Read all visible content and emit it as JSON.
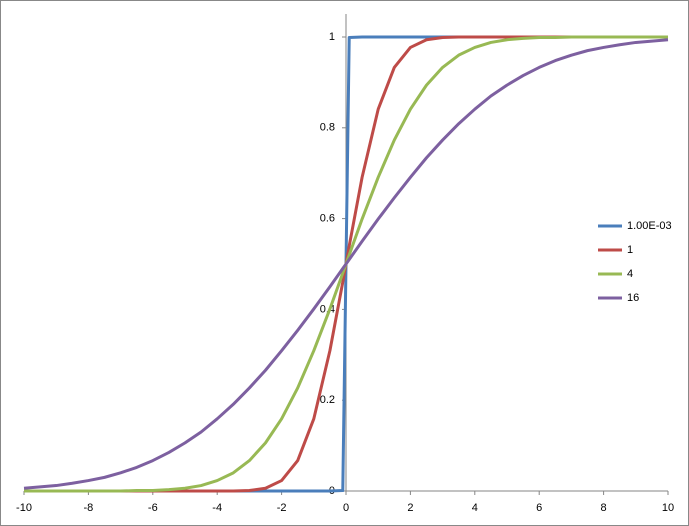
{
  "chart_data": {
    "type": "line",
    "x": [
      -10,
      -9.5,
      -9,
      -8.5,
      -8,
      -7.5,
      -7,
      -6.5,
      -6,
      -5.5,
      -5,
      -4.5,
      -4,
      -3.5,
      -3,
      -2.5,
      -2,
      -1.5,
      -1,
      -0.5,
      -0.1,
      0,
      0.1,
      0.5,
      1,
      1.5,
      2,
      2.5,
      3,
      3.5,
      4,
      4.5,
      5,
      5.5,
      6,
      6.5,
      7,
      7.5,
      8,
      8.5,
      9,
      9.5,
      10
    ],
    "series": [
      {
        "name": "1.00E-03",
        "color": "#4a7ebb",
        "values": [
          0,
          0,
          0,
          0,
          0,
          0,
          0,
          0,
          0,
          0,
          0,
          0,
          0,
          0,
          0,
          0,
          0,
          0,
          0,
          0,
          0.001,
          0.5,
          0.999,
          1,
          1,
          1,
          1,
          1,
          1,
          1,
          1,
          1,
          1,
          1,
          1,
          1,
          1,
          1,
          1,
          1,
          1,
          1,
          1
        ]
      },
      {
        "name": "1",
        "color": "#be4b48",
        "values": [
          0,
          0,
          0,
          0,
          0,
          0,
          0,
          0,
          0,
          0,
          0,
          0,
          0,
          0,
          0.001,
          0.006,
          0.023,
          0.067,
          0.159,
          0.309,
          0.46,
          0.5,
          0.54,
          0.691,
          0.841,
          0.933,
          0.977,
          0.994,
          0.999,
          1,
          1,
          1,
          1,
          1,
          1,
          1,
          1,
          1,
          1,
          1,
          1,
          1,
          1
        ]
      },
      {
        "name": "4",
        "color": "#98b954",
        "values": [
          0,
          0,
          0,
          0,
          0,
          0,
          0,
          0.001,
          0.001,
          0.003,
          0.006,
          0.012,
          0.023,
          0.04,
          0.067,
          0.106,
          0.159,
          0.227,
          0.309,
          0.401,
          0.48,
          0.5,
          0.52,
          0.599,
          0.691,
          0.773,
          0.841,
          0.894,
          0.933,
          0.96,
          0.977,
          0.988,
          0.994,
          0.997,
          0.999,
          0.999,
          1,
          1,
          1,
          1,
          1,
          1,
          1
        ]
      },
      {
        "name": "16",
        "color": "#7d60a0",
        "values": [
          0.006,
          0.009,
          0.012,
          0.017,
          0.023,
          0.03,
          0.04,
          0.052,
          0.067,
          0.085,
          0.106,
          0.13,
          0.159,
          0.191,
          0.227,
          0.266,
          0.309,
          0.354,
          0.401,
          0.45,
          0.49,
          0.5,
          0.51,
          0.55,
          0.599,
          0.646,
          0.691,
          0.734,
          0.773,
          0.809,
          0.841,
          0.87,
          0.894,
          0.915,
          0.933,
          0.948,
          0.96,
          0.97,
          0.977,
          0.983,
          0.988,
          0.991,
          0.994
        ]
      }
    ],
    "xlim": [
      -10,
      10
    ],
    "xticks": [
      -10,
      -8,
      -6,
      -4,
      -2,
      0,
      2,
      4,
      6,
      8,
      10
    ],
    "ylim": [
      0,
      1
    ],
    "yticks": [
      0,
      0.2,
      0.4,
      0.6,
      0.8,
      1
    ],
    "legend": "right"
  }
}
